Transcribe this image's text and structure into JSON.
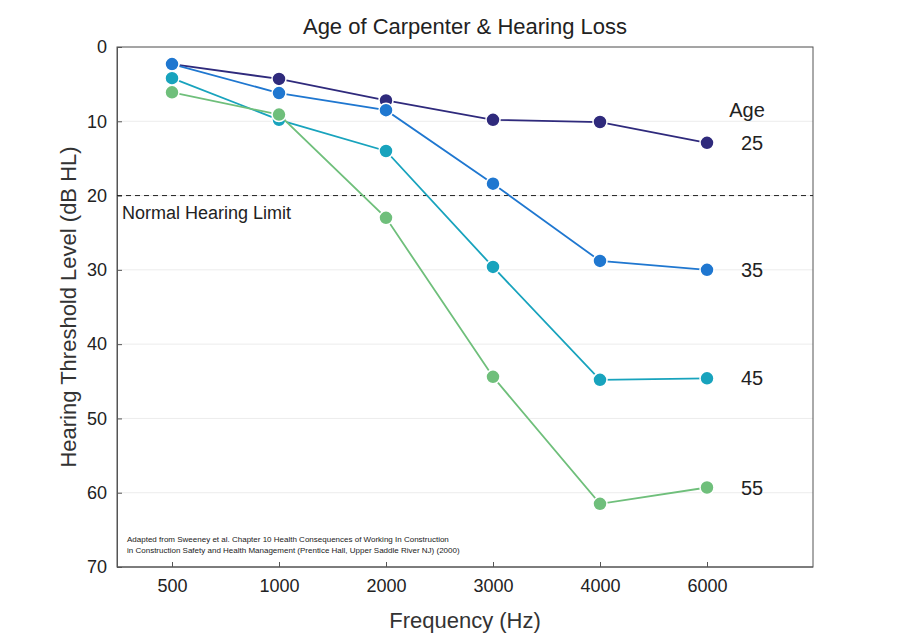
{
  "chart_data": {
    "type": "line",
    "title": "Age of Carpenter & Hearing Loss",
    "x_label": "Frequency (Hz)",
    "y_label": "Hearing Threshold Level (dB HL)",
    "legend_title": "Age",
    "categories": [
      "500",
      "1000",
      "2000",
      "3000",
      "4000",
      "6000"
    ],
    "series": [
      {
        "name": "25",
        "color": "#2f2a7c",
        "marker": "circle",
        "line_style": "solid",
        "values": [
          2.3,
          4.3,
          7.2,
          9.8,
          10.1,
          12.9
        ]
      },
      {
        "name": "35",
        "color": "#1f77d0",
        "marker": "circle",
        "line_style": "solid",
        "values": [
          2.3,
          6.2,
          8.5,
          18.4,
          28.8,
          30.0
        ]
      },
      {
        "name": "45",
        "color": "#18a3bd",
        "marker": "circle",
        "line_style": "solid",
        "values": [
          4.2,
          9.8,
          14.0,
          29.6,
          44.8,
          44.6
        ]
      },
      {
        "name": "55",
        "color": "#6fbf7b",
        "marker": "circle",
        "line_style": "solid",
        "values": [
          6.1,
          9.1,
          23.0,
          44.4,
          61.5,
          59.3
        ]
      }
    ],
    "ylim": [
      0,
      70
    ],
    "yticks": [
      0,
      10,
      20,
      30,
      40,
      50,
      60,
      70
    ],
    "grid": true,
    "annotations": [
      {
        "text": "Normal Hearing Limit",
        "y": 20,
        "line_style": "dashed"
      }
    ],
    "source": [
      "Adapted from Sweeney et al. Chapter 10 Health Consequences of Working In Construction",
      "in Construction Safety and Health Management (Prentice Hall, Upper Saddle River NJ) (2000)"
    ]
  }
}
